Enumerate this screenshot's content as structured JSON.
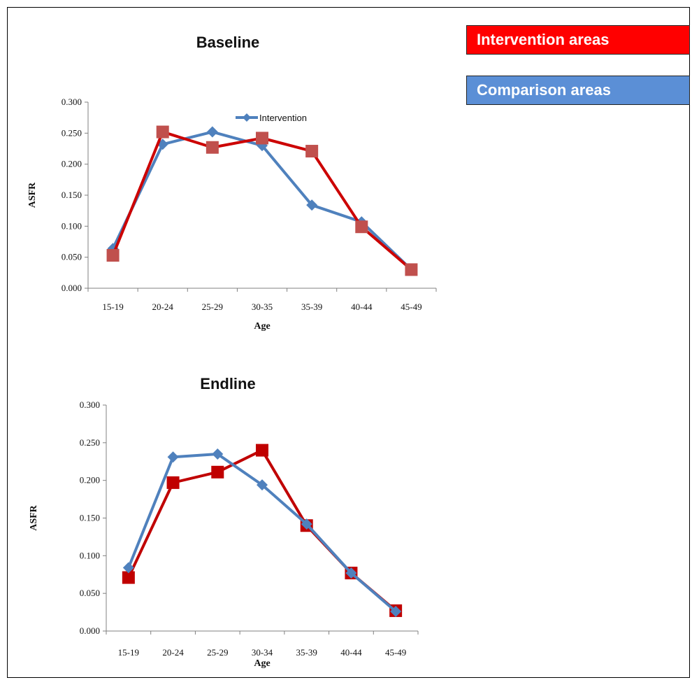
{
  "legend_boxes": [
    {
      "label": "Intervention areas",
      "color": "#ff0000"
    },
    {
      "label": "Comparison areas",
      "color": "#5b8fd6"
    }
  ],
  "chart_data": [
    {
      "type": "line",
      "title": "Baseline",
      "xlabel": "Age",
      "ylabel": "ASFR",
      "categories": [
        "15-19",
        "20-24",
        "25-29",
        "30-35",
        "35-39",
        "40-44",
        "45-49"
      ],
      "ylim": [
        0,
        0.3
      ],
      "yticks": [
        "0.000",
        "0.050",
        "0.100",
        "0.150",
        "0.200",
        "0.250",
        "0.300"
      ],
      "grid": false,
      "inline_legend": "Intervention",
      "series": [
        {
          "name": "Intervention",
          "color": "#4f81bd",
          "marker": "diamond",
          "values": [
            0.064,
            0.232,
            0.252,
            0.23,
            0.134,
            0.107,
            0.03
          ]
        },
        {
          "color": "#c0504d",
          "marker": "square",
          "line_color": "#cc0000",
          "values": [
            0.053,
            0.252,
            0.227,
            0.242,
            0.221,
            0.099,
            0.03
          ]
        }
      ]
    },
    {
      "type": "line",
      "title": "Endline",
      "xlabel": "Age",
      "ylabel": "ASFR",
      "categories": [
        "15-19",
        "20-24",
        "25-29",
        "30-34",
        "35-39",
        "40-44",
        "45-49"
      ],
      "ylim": [
        0,
        0.3
      ],
      "yticks": [
        "0.000",
        "0.050",
        "0.100",
        "0.150",
        "0.200",
        "0.250",
        "0.300"
      ],
      "grid": false,
      "series": [
        {
          "color": "#c00000",
          "marker": "square",
          "line_color": "#c00000",
          "values": [
            0.071,
            0.197,
            0.211,
            0.24,
            0.14,
            0.077,
            0.027
          ]
        },
        {
          "color": "#4f81bd",
          "marker": "diamond",
          "line_color": "#4f81bd",
          "values": [
            0.084,
            0.231,
            0.235,
            0.194,
            0.142,
            0.077,
            0.026
          ]
        }
      ]
    }
  ]
}
